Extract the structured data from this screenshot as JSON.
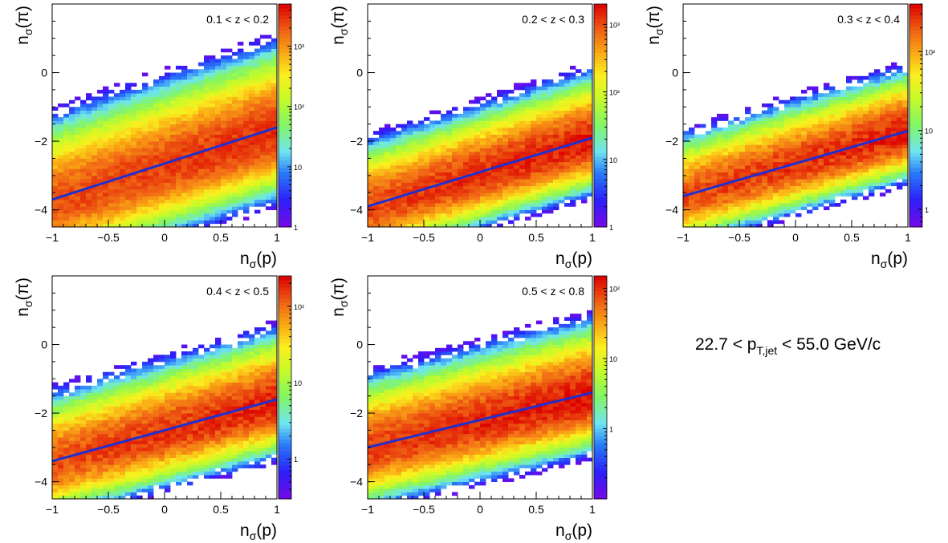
{
  "figure": {
    "global_title_prefix": "22.7 < p",
    "global_title_sub": "T,jet",
    "global_title_suffix": " < 55.0 GeV/c"
  },
  "chart_data": [
    {
      "type": "heatmap",
      "title": "0.1 < z < 0.2",
      "xlabel": "nσ(p)",
      "ylabel": "nσ(π)",
      "xlim": [
        -1,
        1
      ],
      "ylim": [
        -4.5,
        2
      ],
      "xticks": [
        "−1",
        "−0.5",
        "0",
        "0.5",
        "1"
      ],
      "yticks": [
        "−4",
        "−2",
        "0"
      ],
      "colorbar": {
        "scale": "log",
        "min": 1,
        "max": 5000,
        "ticks": [
          {
            "label": "1",
            "value": 1
          },
          {
            "label": "10",
            "value": 10
          },
          {
            "label": "10²",
            "value": 100
          },
          {
            "label": "10³",
            "value": 1000
          }
        ]
      },
      "density": {
        "intercept": -2.8,
        "slope": 1.05,
        "sigma": 0.55,
        "peak": 3000
      },
      "fit_line": {
        "x": [
          -1,
          1
        ],
        "y": [
          -3.7,
          -1.6
        ]
      }
    },
    {
      "type": "heatmap",
      "title": "0.2 < z < 0.3",
      "xlabel": "nσ(p)",
      "ylabel": "nσ(π)",
      "xlim": [
        -1,
        1
      ],
      "ylim": [
        -4.5,
        2
      ],
      "xticks": [
        "−1",
        "−0.5",
        "0",
        "0.5",
        "1"
      ],
      "yticks": [
        "−4",
        "−2",
        "0"
      ],
      "colorbar": {
        "scale": "log",
        "min": 1,
        "max": 2000,
        "ticks": [
          {
            "label": "1",
            "value": 1
          },
          {
            "label": "10",
            "value": 10
          },
          {
            "label": "10²",
            "value": 100
          },
          {
            "label": "10³",
            "value": 1000
          }
        ]
      },
      "density": {
        "intercept": -3.0,
        "slope": 1.0,
        "sigma": 0.45,
        "peak": 1500
      },
      "fit_line": {
        "x": [
          -1,
          1
        ],
        "y": [
          -3.9,
          -1.9
        ]
      }
    },
    {
      "type": "heatmap",
      "title": "0.3 < z < 0.4",
      "xlabel": "nσ(p)",
      "ylabel": "nσ(π)",
      "xlim": [
        -1,
        1
      ],
      "ylim": [
        -4.5,
        2
      ],
      "xticks": [
        "−1",
        "−0.5",
        "0",
        "0.5",
        "1"
      ],
      "yticks": [
        "−4",
        "−2",
        "0"
      ],
      "colorbar": {
        "scale": "log",
        "min": 0.6,
        "max": 400,
        "ticks": [
          {
            "label": "1",
            "value": 1
          },
          {
            "label": "10",
            "value": 10
          },
          {
            "label": "10²",
            "value": 100
          }
        ]
      },
      "density": {
        "intercept": -2.7,
        "slope": 0.95,
        "sigma": 0.45,
        "peak": 300
      },
      "fit_line": {
        "x": [
          -1,
          1
        ],
        "y": [
          -3.6,
          -1.7
        ]
      }
    },
    {
      "type": "heatmap",
      "title": "0.4 < z < 0.5",
      "xlabel": "nσ(p)",
      "ylabel": "nσ(π)",
      "xlim": [
        -1,
        1
      ],
      "ylim": [
        -4.5,
        2
      ],
      "xticks": [
        "−1",
        "−0.5",
        "0",
        "0.5",
        "1"
      ],
      "yticks": [
        "−4",
        "−2",
        "0"
      ],
      "colorbar": {
        "scale": "log",
        "min": 0.3,
        "max": 250,
        "ticks": [
          {
            "label": "1",
            "value": 1
          },
          {
            "label": "10",
            "value": 10
          },
          {
            "label": "10²",
            "value": 100
          }
        ]
      },
      "density": {
        "intercept": -2.6,
        "slope": 0.9,
        "sigma": 0.5,
        "peak": 180
      },
      "fit_line": {
        "x": [
          -1,
          1
        ],
        "y": [
          -3.4,
          -1.6
        ]
      }
    },
    {
      "type": "heatmap",
      "title": "0.5 < z < 0.8",
      "xlabel": "nσ(p)",
      "ylabel": "nσ(π)",
      "xlim": [
        -1,
        1
      ],
      "ylim": [
        -4.5,
        2
      ],
      "xticks": [
        "−1",
        "−0.5",
        "0",
        "0.5",
        "1"
      ],
      "yticks": [
        "−4",
        "−2",
        "0"
      ],
      "colorbar": {
        "scale": "log",
        "min": 0.1,
        "max": 150,
        "ticks": [
          {
            "label": "1",
            "value": 1
          },
          {
            "label": "10",
            "value": 10
          },
          {
            "label": "10²",
            "value": 100
          }
        ]
      },
      "density": {
        "intercept": -2.3,
        "slope": 0.8,
        "sigma": 0.5,
        "peak": 120
      },
      "fit_line": {
        "x": [
          -1,
          1
        ],
        "y": [
          -3.0,
          -1.4
        ]
      }
    }
  ]
}
